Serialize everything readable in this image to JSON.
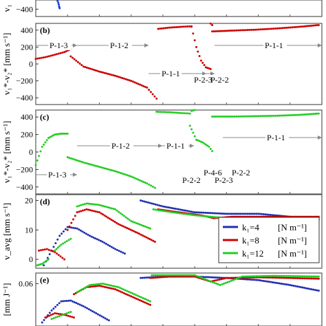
{
  "chart_data": [
    {
      "panel": "(a)",
      "type": "scatter",
      "ylabel": "v₁",
      "yticks": [
        -200,
        -400
      ],
      "ylim": [
        -480,
        -150
      ],
      "series": [
        {
          "color": "#1f3fd6",
          "x": [
            0.42,
            0.52,
            0.6,
            0.66,
            0.71,
            0.735,
            0.75
          ],
          "y": [
            -150,
            -190,
            -240,
            -290,
            -330,
            -370,
            -390
          ]
        }
      ]
    },
    {
      "panel": "(b)",
      "type": "scatter",
      "ylabel": "v₁*-v₂* [mm s⁻¹]",
      "yticks": [
        400,
        200,
        0,
        -200,
        -400
      ],
      "ylim": [
        -480,
        480
      ],
      "phase_labels": [
        {
          "text": "P-1-3"
        },
        {
          "text": "P-1-2"
        },
        {
          "text": "P-1-1"
        },
        {
          "text": "P-2-3"
        },
        {
          "text": "P-2-2"
        },
        {
          "text": "P-1-1"
        }
      ],
      "series": [
        {
          "color": "#cc0000",
          "segments": [
            {
              "x": [
                0,
                0.3,
                0.6,
                0.9,
                1.1
              ],
              "y": [
                60,
                80,
                110,
                140,
                175
              ]
            },
            {
              "x": [
                1.1,
                1.5,
                2.0,
                2.5,
                3.0,
                3.5,
                3.8
              ],
              "y": [
                90,
                -30,
                -90,
                -140,
                -200,
                -280,
                -410
              ]
            },
            {
              "x": [
                3.85,
                4.2,
                4.6,
                4.9
              ],
              "y": [
                415,
                430,
                440,
                445
              ]
            },
            {
              "x": [
                4.9,
                5.1,
                5.3,
                5.45,
                5.55
              ],
              "y": [
                490,
                505,
                505,
                495,
                460
              ]
            },
            {
              "x": [
                4.9,
                5.05,
                5.2,
                5.35,
                5.5
              ],
              "y": [
                440,
                200,
                40,
                -40,
                -60
              ]
            },
            {
              "x": [
                5.55,
                6.2,
                6.9,
                7.6,
                8.3,
                8.9
              ],
              "y": [
                385,
                395,
                405,
                420,
                440,
                460
              ]
            }
          ]
        }
      ]
    },
    {
      "panel": "(c)",
      "type": "scatter",
      "ylabel": "v₁*-v₂* [mm s⁻¹]",
      "yticks": [
        400,
        200,
        0,
        -200,
        -400
      ],
      "ylim": [
        -480,
        480
      ],
      "phase_labels": [
        {
          "text": "P-1-3"
        },
        {
          "text": "P-1-2"
        },
        {
          "text": "P-1-1"
        },
        {
          "text": "P-4-6"
        },
        {
          "text": "P-2-2"
        },
        {
          "text": "P-2-3"
        },
        {
          "text": "P-2-2"
        },
        {
          "text": "P-1-1"
        }
      ],
      "series": [
        {
          "color": "#22cc22",
          "segments": [
            {
              "x": [
                0.0,
                0.2,
                0.4,
                0.6,
                0.8,
                1.0
              ],
              "y": [
                -150,
                60,
                160,
                200,
                210,
                210
              ]
            },
            {
              "x": [
                1.0,
                1.5,
                2.0,
                2.5,
                3.0,
                3.5,
                3.75
              ],
              "y": [
                -60,
                -120,
                -170,
                -220,
                -280,
                -360,
                -410
              ]
            },
            {
              "x": [
                3.8,
                4.2,
                4.6,
                4.85
              ],
              "y": [
                460,
                455,
                445,
                440
              ]
            },
            {
              "x": [
                4.9,
                5.1,
                5.3,
                5.5
              ],
              "y": [
                470,
                490,
                505,
                510
              ]
            },
            {
              "x": [
                4.85,
                5.05,
                5.25,
                5.45,
                5.55
              ],
              "y": [
                300,
                140,
                110,
                60,
                10
              ]
            },
            {
              "x": [
                5.55,
                6.2,
                6.9,
                7.6,
                8.3,
                8.9
              ],
              "y": [
                405,
                405,
                410,
                415,
                425,
                440
              ]
            }
          ]
        }
      ]
    },
    {
      "panel": "(d)",
      "type": "scatter",
      "ylabel": "v_avg [mm s⁻¹]",
      "yticks": [
        20,
        10,
        0
      ],
      "ylim": [
        -3,
        22
      ],
      "legend": {
        "placement": "right",
        "entries": [
          {
            "label": "k₁=4",
            "unit": "[N m⁻¹]",
            "color": "#1f2fb0"
          },
          {
            "label": "k₁=8",
            "unit": "[N m⁻¹]",
            "color": "#cc0000"
          },
          {
            "label": "k₁=12",
            "unit": "[N m⁻¹]",
            "color": "#22cc22"
          }
        ]
      },
      "series": [
        {
          "color": "#1f2fb0",
          "segments": [
            {
              "x": [
                0.25,
                0.5,
                0.75,
                1.0,
                1.3,
                1.7,
                2.1,
                2.5,
                2.8
              ],
              "y": [
                -2,
                3,
                8,
                11,
                10.5,
                8,
                6,
                3.5,
                2
              ]
            },
            {
              "x": [
                3.3,
                4.0,
                5.0,
                6.0,
                7.0,
                8.0,
                8.9
              ],
              "y": [
                20,
                18,
                16,
                15.5,
                15.5,
                14.5,
                13.5
              ]
            }
          ]
        },
        {
          "color": "#cc0000",
          "segments": [
            {
              "x": [
                0.1,
                0.35,
                0.6,
                0.9
              ],
              "y": [
                3,
                3.5,
                2.5,
                0
              ]
            },
            {
              "x": [
                1.0,
                1.3,
                1.6,
                2.0,
                2.6,
                3.2,
                3.75
              ],
              "y": [
                10,
                16,
                17,
                16,
                12,
                9,
                6
              ]
            },
            {
              "x": [
                3.85,
                4.5,
                5.2,
                5.6,
                6.2,
                7.0,
                8.0,
                8.9
              ],
              "y": [
                17,
                16,
                15,
                14,
                14.5,
                14.5,
                14.5,
                14.5
              ]
            }
          ]
        },
        {
          "color": "#22cc22",
          "segments": [
            {
              "x": [
                0.05,
                0.2,
                0.4
              ],
              "y": [
                -2,
                -1.5,
                0
              ]
            },
            {
              "x": [
                0.6,
                0.8,
                1.1
              ],
              "y": [
                3,
                5,
                7
              ]
            },
            {
              "x": [
                1.3,
                1.6,
                2.0,
                2.5,
                3.0,
                3.6
              ],
              "y": [
                18,
                19,
                18.5,
                17,
                13,
                10.5
              ]
            },
            {
              "x": [
                3.7,
                4.3,
                5.0,
                6.0,
                7.0,
                8.0,
                8.9
              ],
              "y": [
                17,
                16,
                15,
                14,
                14,
                14,
                14
              ]
            }
          ]
        }
      ]
    },
    {
      "panel": "(e)",
      "type": "scatter",
      "ylabel": "[mm J⁻¹]",
      "yticks": [
        0.06
      ],
      "ylim": [
        0.0,
        0.075
      ],
      "series": [
        {
          "color": "#1f2fb0",
          "segments": [
            {
              "x": [
                0.2,
                0.5,
                0.8,
                1.1,
                1.5,
                1.9,
                2.3
              ],
              "y": [
                0.005,
                0.022,
                0.035,
                0.036,
                0.028,
                0.018,
                0.008
              ]
            },
            {
              "x": [
                3.3,
                4.0,
                5.0,
                6.0,
                7.0,
                8.0,
                8.9
              ],
              "y": [
                0.068,
                0.07,
                0.07,
                0.068,
                0.065,
                0.058,
                0.05
              ]
            }
          ]
        },
        {
          "color": "#cc0000",
          "segments": [
            {
              "x": [
                0.3,
                0.6,
                0.9,
                1.2
              ],
              "y": [
                0.012,
                0.018,
                0.016,
                0.012
              ]
            },
            {
              "x": [
                1.2,
                1.6,
                2.0,
                2.5,
                3.0,
                3.6
              ],
              "y": [
                0.045,
                0.055,
                0.057,
                0.052,
                0.042,
                0.03
              ]
            },
            {
              "x": [
                3.6,
                4.2,
                5.0,
                5.5,
                6.0,
                7.0,
                8.0,
                8.9
              ],
              "y": [
                0.068,
                0.07,
                0.07,
                0.063,
                0.068,
                0.069,
                0.068,
                0.067
              ]
            }
          ]
        },
        {
          "color": "#22cc22",
          "segments": [
            {
              "x": [
                0.5,
                0.8,
                1.1
              ],
              "y": [
                0.01,
                0.015,
                0.02
              ]
            },
            {
              "x": [
                1.3,
                1.7,
                2.1,
                2.6,
                3.1,
                3.6
              ],
              "y": [
                0.048,
                0.058,
                0.06,
                0.055,
                0.045,
                0.035
              ]
            },
            {
              "x": [
                3.65,
                4.2,
                5.0,
                5.4,
                5.8,
                6.5,
                7.5,
                8.9
              ],
              "y": [
                0.072,
                0.072,
                0.072,
                0.065,
                0.058,
                0.07,
                0.071,
                0.07
              ]
            }
          ]
        }
      ]
    }
  ]
}
